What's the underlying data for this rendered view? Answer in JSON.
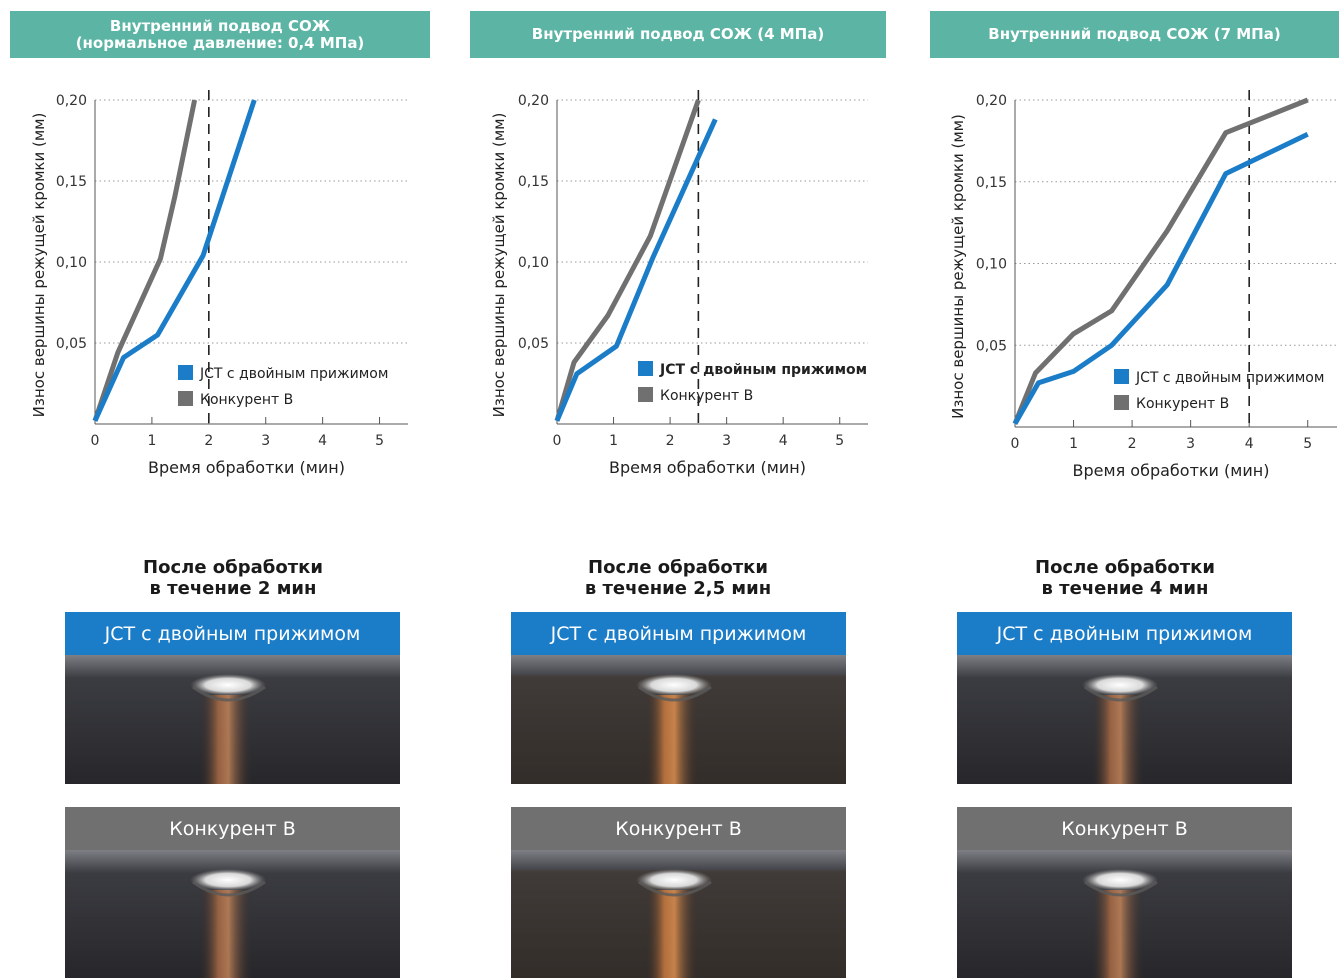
{
  "colors": {
    "header_bg": "#5cb5a4",
    "jct": "#1b7dc8",
    "competitor": "#707070"
  },
  "panels": [
    {
      "header_lines": [
        "Внутренний подвод СОЖ",
        "(нормальное давление: 0,4 МПа)"
      ],
      "after_title_lines": [
        "После обработки",
        "в течение 2 мин"
      ],
      "jct_band": "JCT с двойным прижимом",
      "competitor_band": "Конкурент B"
    },
    {
      "header_lines": [
        "Внутренний подвод СОЖ (4 МПа)"
      ],
      "after_title_lines": [
        "После обработки",
        "в течение 2,5 мин"
      ],
      "jct_band": "JCT с двойным прижимом",
      "competitor_band": "Конкурент B"
    },
    {
      "header_lines": [
        "Внутренний подвод СОЖ (7 МПа)"
      ],
      "after_title_lines": [
        "После обработки",
        "в течение 4 мин"
      ],
      "jct_band": "JCT с двойным прижимом",
      "competitor_band": "Конкурент B"
    }
  ],
  "chart_data": [
    {
      "type": "line",
      "xlabel": "Время обработки (мин)",
      "ylabel": "Износ вершины режущей кромки (мм)",
      "xlim": [
        0,
        5.5
      ],
      "ylim": [
        0,
        0.2
      ],
      "x_ticks": [
        "0",
        "1",
        "2",
        "3",
        "4",
        "5"
      ],
      "y_ticks": [
        "0,05",
        "0,10",
        "0,15",
        "0,20"
      ],
      "grid": "horizontal dotted",
      "marker_x": 2,
      "legend_position": "lower-right",
      "legend_bold": false,
      "series": [
        {
          "name": "JCT с двойным прижимом",
          "color": "#1b7dc8",
          "points": [
            [
              0,
              0.002
            ],
            [
              0.5,
              0.041
            ],
            [
              1.1,
              0.055
            ],
            [
              1.9,
              0.104
            ],
            [
              2.8,
              0.2
            ]
          ]
        },
        {
          "name": "Конкурент B",
          "color": "#707070",
          "points": [
            [
              0,
              0.002
            ],
            [
              0.4,
              0.044
            ],
            [
              1.15,
              0.102
            ],
            [
              1.4,
              0.14
            ],
            [
              1.75,
              0.2
            ]
          ]
        }
      ]
    },
    {
      "type": "line",
      "xlabel": "Время обработки (мин)",
      "ylabel": "Износ вершины режущей кромки (мм)",
      "xlim": [
        0,
        5.5
      ],
      "ylim": [
        0,
        0.2
      ],
      "x_ticks": [
        "0",
        "1",
        "2",
        "3",
        "4",
        "5"
      ],
      "y_ticks": [
        "0,05",
        "0,10",
        "0,15",
        "0,20"
      ],
      "grid": "horizontal dotted",
      "marker_x": 2.5,
      "legend_position": "lower-right",
      "legend_bold": true,
      "series": [
        {
          "name": "JCT с двойным прижимом",
          "color": "#1b7dc8",
          "points": [
            [
              0,
              0.002
            ],
            [
              0.35,
              0.031
            ],
            [
              1.05,
              0.048
            ],
            [
              1.7,
              0.103
            ],
            [
              2.8,
              0.188
            ]
          ]
        },
        {
          "name": "Конкурент B",
          "color": "#707070",
          "points": [
            [
              0,
              0.002
            ],
            [
              0.3,
              0.038
            ],
            [
              0.9,
              0.067
            ],
            [
              1.65,
              0.116
            ],
            [
              2.5,
              0.2
            ]
          ]
        }
      ]
    },
    {
      "type": "line",
      "xlabel": "Время обработки (мин)",
      "ylabel": "Износ вершины режущей кромки (мм)",
      "xlim": [
        0,
        5.5
      ],
      "ylim": [
        0,
        0.2
      ],
      "x_ticks": [
        "0",
        "1",
        "2",
        "3",
        "4",
        "5"
      ],
      "y_ticks": [
        "0,05",
        "0,10",
        "0,15",
        "0,20"
      ],
      "grid": "horizontal dotted",
      "marker_x": 4,
      "legend_position": "lower-right",
      "legend_bold": false,
      "series": [
        {
          "name": "JCT с двойным прижимом",
          "color": "#1b7dc8",
          "points": [
            [
              0,
              0.002
            ],
            [
              0.4,
              0.027
            ],
            [
              1.0,
              0.034
            ],
            [
              1.65,
              0.05
            ],
            [
              2.6,
              0.087
            ],
            [
              3.6,
              0.155
            ],
            [
              5.0,
              0.179
            ]
          ]
        },
        {
          "name": "Конкурент B",
          "color": "#707070",
          "points": [
            [
              0,
              0.002
            ],
            [
              0.35,
              0.033
            ],
            [
              1.0,
              0.057
            ],
            [
              1.65,
              0.071
            ],
            [
              2.6,
              0.12
            ],
            [
              3.6,
              0.18
            ],
            [
              5.0,
              0.2
            ]
          ]
        }
      ]
    }
  ]
}
